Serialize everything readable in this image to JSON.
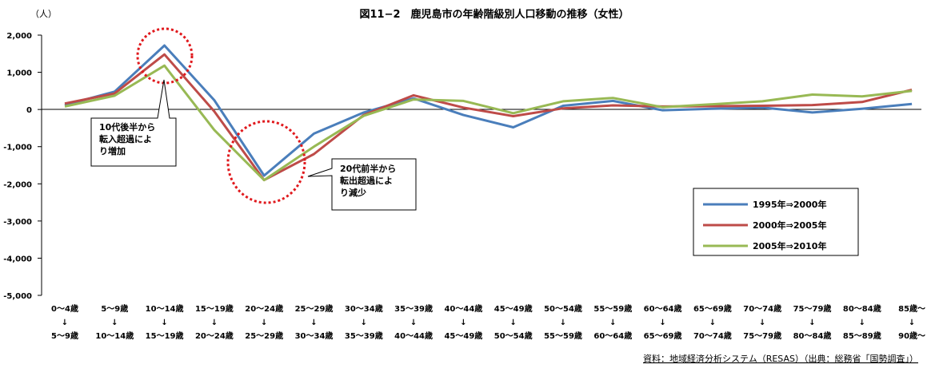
{
  "chart_data": {
    "type": "line",
    "title": "図11−2　鹿児島市の年齢階級別人口移動の推移（女性）",
    "unit_label": "（人）",
    "ylim": [
      -5000,
      2000
    ],
    "yticks": [
      2000,
      1000,
      0,
      -1000,
      -2000,
      -3000,
      -4000,
      -5000
    ],
    "ytick_labels": [
      "2,000",
      "1,000",
      "0",
      "-1,000",
      "-2,000",
      "-3,000",
      "-4,000",
      "-5,000"
    ],
    "categories_top": [
      "0〜4歳",
      "5〜9歳",
      "10〜14歳",
      "15〜19歳",
      "20〜24歳",
      "25〜29歳",
      "30〜34歳",
      "35〜39歳",
      "40〜44歳",
      "45〜49歳",
      "50〜54歳",
      "55〜59歳",
      "60〜64歳",
      "65〜69歳",
      "70〜74歳",
      "75〜79歳",
      "80〜84歳",
      "85歳〜"
    ],
    "arrow": "↓",
    "categories_bottom": [
      "5〜9歳",
      "10〜14歳",
      "15〜19歳",
      "20〜24歳",
      "25〜29歳",
      "30〜34歳",
      "35〜39歳",
      "40〜44歳",
      "45〜49歳",
      "50〜54歳",
      "55〜59歳",
      "60〜64歳",
      "65〜69歳",
      "70〜74歳",
      "75〜79歳",
      "80〜84歳",
      "85〜89歳",
      "90歳〜"
    ],
    "series": [
      {
        "name": "1995年⇒2000年",
        "color": "#4a7ebb",
        "values": [
          120,
          480,
          1720,
          250,
          -1780,
          -650,
          -80,
          300,
          -150,
          -480,
          100,
          230,
          -20,
          20,
          50,
          -80,
          20,
          150
        ]
      },
      {
        "name": "2000年⇒2005年",
        "color": "#be4b48",
        "values": [
          160,
          430,
          1480,
          -50,
          -1900,
          -1200,
          -150,
          380,
          50,
          -180,
          30,
          110,
          80,
          90,
          100,
          120,
          200,
          530
        ]
      },
      {
        "name": "2005年⇒2010年",
        "color": "#98b954",
        "values": [
          80,
          370,
          1180,
          -550,
          -1900,
          -1000,
          -170,
          270,
          230,
          -100,
          220,
          310,
          60,
          140,
          220,
          400,
          350,
          500
        ]
      }
    ],
    "legend_position": "right",
    "grid": false,
    "annotations": [
      {
        "text": "10代後半から\n転入超過によ\nり増加",
        "target_category": "10〜14歳"
      },
      {
        "text": "20代前半から\n転出超過によ\nり減少",
        "target_category": "20〜24歳"
      }
    ],
    "source": "資料：地域経済分析システム（RESAS）（出典：総務省「国勢調査」）"
  }
}
